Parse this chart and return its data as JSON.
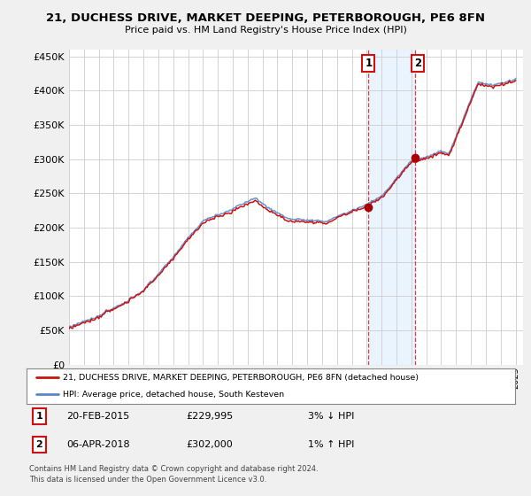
{
  "title": "21, DUCHESS DRIVE, MARKET DEEPING, PETERBOROUGH, PE6 8FN",
  "subtitle": "Price paid vs. HM Land Registry's House Price Index (HPI)",
  "ylim": [
    0,
    460000
  ],
  "yticks": [
    0,
    50000,
    100000,
    150000,
    200000,
    250000,
    300000,
    350000,
    400000,
    450000
  ],
  "ytick_labels": [
    "£0",
    "£50K",
    "£100K",
    "£150K",
    "£200K",
    "£250K",
    "£300K",
    "£350K",
    "£400K",
    "£450K"
  ],
  "background_color": "#f0f0f0",
  "plot_bg_color": "#ffffff",
  "hpi_color": "#5588cc",
  "price_color": "#cc1111",
  "sale1_date": "20-FEB-2015",
  "sale1_price": 229995,
  "sale1_hpi_diff": "3% ↓ HPI",
  "sale2_date": "06-APR-2018",
  "sale2_price": 302000,
  "sale2_hpi_diff": "1% ↑ HPI",
  "legend_line1": "21, DUCHESS DRIVE, MARKET DEEPING, PETERBOROUGH, PE6 8FN (detached house)",
  "legend_line2": "HPI: Average price, detached house, South Kesteven",
  "footer": "Contains HM Land Registry data © Crown copyright and database right 2024.\nThis data is licensed under the Open Government Licence v3.0.",
  "sale1_x": 2015.12,
  "sale2_x": 2018.27,
  "shade_color": "#ddeeff",
  "shade_alpha": 0.6,
  "grid_color": "#cccccc"
}
